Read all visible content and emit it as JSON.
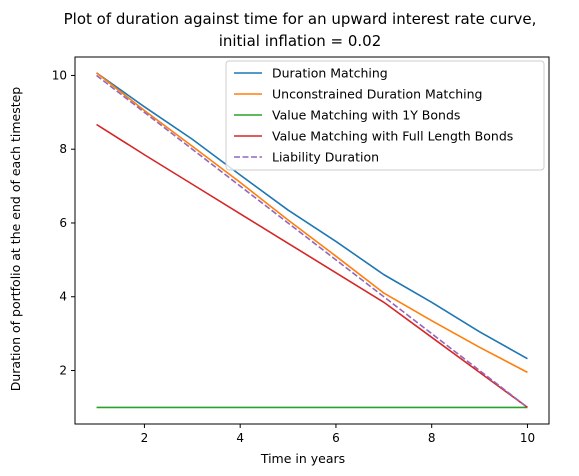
{
  "chart_data": {
    "type": "line",
    "title_lines": [
      "Plot of duration against time for an upward interest rate curve,",
      "initial inflation = 0.02"
    ],
    "xlabel": "Time in years",
    "ylabel": "Duration of portfolio at the end of each timestep",
    "xlim": [
      0.55,
      10.45
    ],
    "ylim": [
      0.55,
      10.5
    ],
    "xticks": [
      2,
      4,
      6,
      8,
      10
    ],
    "yticks": [
      2,
      4,
      6,
      8,
      10
    ],
    "grid": false,
    "legend_position": "top-right",
    "x": [
      1,
      2,
      3,
      4,
      5,
      6,
      7,
      8,
      9,
      10
    ],
    "series": [
      {
        "name": "Duration Matching",
        "color": "#1f77b4",
        "dash": "solid",
        "values": [
          10.07,
          9.15,
          8.27,
          7.3,
          6.35,
          5.5,
          4.6,
          3.85,
          3.05,
          2.32
        ]
      },
      {
        "name": "Unconstrained Duration Matching",
        "color": "#ff7f0e",
        "dash": "solid",
        "values": [
          10.07,
          9.05,
          8.08,
          7.1,
          6.08,
          5.1,
          4.1,
          3.35,
          2.63,
          1.95
        ]
      },
      {
        "name": "Value Matching with 1Y Bonds",
        "color": "#2ca02c",
        "dash": "solid",
        "values": [
          1,
          1,
          1,
          1,
          1,
          1,
          1,
          1,
          1,
          1
        ]
      },
      {
        "name": "Value Matching with Full Length Bonds",
        "color": "#d62728",
        "dash": "solid",
        "values": [
          8.67,
          7.85,
          7.05,
          6.25,
          5.45,
          4.65,
          3.85,
          2.9,
          1.95,
          1.0
        ]
      },
      {
        "name": "Liability Duration",
        "color": "#9467bd",
        "dash": "dashed",
        "values": [
          10,
          9,
          8,
          7,
          6,
          5,
          4,
          3,
          2,
          1
        ]
      }
    ]
  }
}
